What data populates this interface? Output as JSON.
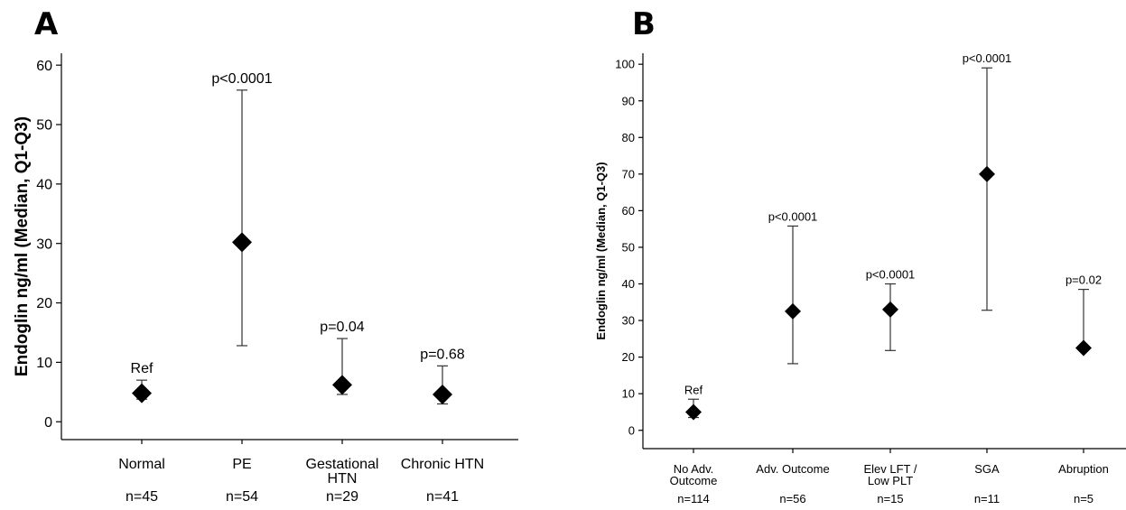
{
  "chart_data": [
    {
      "type": "scatter",
      "panel_letter": "A",
      "title": "",
      "xlabel": "",
      "ylabel": "Endoglin ng/ml (Median, Q1-Q3)",
      "ylim": [
        -3,
        62
      ],
      "yticks": [
        0,
        10,
        20,
        30,
        40,
        50,
        60
      ],
      "grid": false,
      "categories": [
        {
          "label_lines": [
            "Normal"
          ],
          "n_label": "n=45"
        },
        {
          "label_lines": [
            "PE"
          ],
          "n_label": "n=54"
        },
        {
          "label_lines": [
            "Gestational",
            "HTN"
          ],
          "n_label": "n=29"
        },
        {
          "label_lines": [
            "Chronic HTN"
          ],
          "n_label": "n=41"
        }
      ],
      "series": [
        {
          "median": [
            4.8,
            30.2,
            6.2,
            4.6
          ],
          "q1": [
            3.8,
            12.8,
            4.6,
            3.0
          ],
          "q3": [
            7.0,
            55.8,
            14.0,
            9.4
          ]
        }
      ],
      "annotations": [
        "Ref",
        "p<0.0001",
        "p=0.04",
        "p=0.68"
      ]
    },
    {
      "type": "scatter",
      "panel_letter": "B",
      "title": "",
      "xlabel": "",
      "ylabel": "Endoglin ng/ml (Median, Q1-Q3)",
      "ylim": [
        -5,
        103
      ],
      "yticks": [
        0,
        10,
        20,
        30,
        40,
        50,
        60,
        70,
        80,
        90,
        100
      ],
      "grid": false,
      "categories": [
        {
          "label_lines": [
            "No Adv.",
            "Outcome"
          ],
          "n_label": "n=114"
        },
        {
          "label_lines": [
            "Adv. Outcome"
          ],
          "n_label": "n=56"
        },
        {
          "label_lines": [
            "Elev LFT /",
            "Low PLT"
          ],
          "n_label": "n=15"
        },
        {
          "label_lines": [
            "SGA"
          ],
          "n_label": "n=11"
        },
        {
          "label_lines": [
            "Abruption"
          ],
          "n_label": "n=5"
        }
      ],
      "series": [
        {
          "median": [
            5.0,
            32.5,
            33.0,
            70.0,
            22.5
          ],
          "q1": [
            3.5,
            18.2,
            21.8,
            32.8,
            22.5
          ],
          "q3": [
            8.5,
            55.8,
            40.0,
            99.0,
            38.5
          ]
        }
      ],
      "annotations": [
        "Ref",
        "p<0.0001",
        "p<0.0001",
        "p<0.0001",
        "p=0.02"
      ]
    }
  ]
}
